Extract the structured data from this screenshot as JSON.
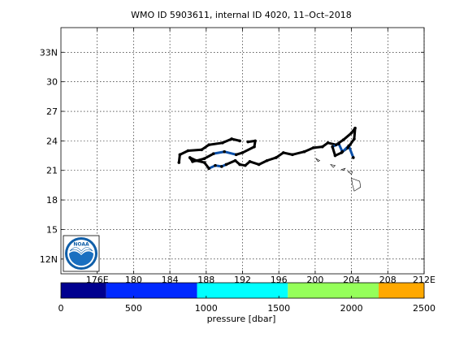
{
  "chart_data": [
    {
      "type": "line",
      "title": "WMO ID 5903611, internal ID 4020, 11–Oct–2018",
      "xlabel": "",
      "ylabel": "",
      "xlim": [
        172,
        212
      ],
      "ylim": [
        10.5,
        35.5
      ],
      "grid": true,
      "x_ticks": [
        176,
        180,
        184,
        188,
        192,
        196,
        200,
        204,
        208,
        212
      ],
      "x_tick_labels": [
        "176E",
        "180",
        "184",
        "188",
        "192",
        "196",
        "200",
        "204",
        "208",
        "212E"
      ],
      "y_ticks": [
        12,
        15,
        18,
        21,
        24,
        27,
        30,
        33
      ],
      "y_tick_labels": [
        "12N",
        "15",
        "18",
        "21",
        "24",
        "27",
        "30",
        "33N"
      ],
      "series": [
        {
          "trajectory": [
            [
              185.0,
              21.8
            ],
            [
              185.1,
              22.6
            ],
            [
              186.0,
              23.0
            ],
            [
              187.5,
              23.1
            ],
            [
              188.3,
              23.6
            ],
            [
              189.8,
              23.8
            ],
            [
              190.8,
              24.2
            ],
            [
              191.7,
              24.0
            ],
            [
              192.6,
              23.9
            ],
            [
              193.4,
              24.0
            ],
            [
              193.3,
              23.4
            ],
            [
              192.0,
              22.8
            ],
            [
              191.3,
              22.6
            ],
            [
              190.0,
              22.9
            ],
            [
              188.8,
              22.7
            ],
            [
              187.8,
              22.2
            ],
            [
              187.0,
              22.0
            ],
            [
              186.5,
              21.9
            ],
            [
              186.2,
              22.3
            ],
            [
              186.9,
              22.0
            ],
            [
              187.8,
              21.8
            ],
            [
              188.3,
              21.2
            ],
            [
              189.0,
              21.5
            ],
            [
              189.7,
              21.4
            ],
            [
              190.2,
              21.6
            ],
            [
              191.2,
              22.0
            ],
            [
              191.7,
              21.6
            ],
            [
              192.3,
              21.5
            ],
            [
              192.8,
              21.9
            ],
            [
              193.8,
              21.6
            ],
            [
              194.7,
              22.0
            ],
            [
              195.7,
              22.3
            ],
            [
              196.5,
              22.8
            ],
            [
              197.5,
              22.6
            ],
            [
              198.8,
              22.9
            ],
            [
              199.8,
              23.3
            ],
            [
              200.8,
              23.4
            ],
            [
              201.4,
              23.8
            ],
            [
              202.3,
              23.6
            ],
            [
              203.1,
              24.1
            ],
            [
              204.0,
              24.8
            ],
            [
              204.4,
              25.3
            ],
            [
              204.3,
              24.2
            ],
            [
              203.6,
              23.3
            ],
            [
              203.0,
              22.9
            ],
            [
              202.6,
              23.7
            ],
            [
              201.9,
              23.4
            ],
            [
              202.2,
              22.5
            ],
            [
              202.9,
              22.8
            ],
            [
              203.7,
              23.5
            ],
            [
              204.2,
              22.3
            ]
          ],
          "segment_pressure_dbar": [
            2000,
            2000,
            2000,
            2000,
            2000,
            2000,
            2000,
            0,
            2000,
            2000,
            2000,
            2000,
            1300,
            1300,
            2000,
            2000,
            2000,
            2000,
            2000,
            2000,
            2000,
            1300,
            1300,
            1300,
            2000,
            2000,
            2000,
            2000,
            2000,
            2000,
            2000,
            2000,
            2000,
            2000,
            2000,
            2000,
            2000,
            2000,
            2000,
            2000,
            2000,
            2000,
            2000,
            2000,
            1300,
            1300,
            2000,
            2000,
            1300,
            1300
          ]
        }
      ],
      "land": {
        "name": "Hawaiian Islands",
        "islands": [
          [
            [
              200.1,
              22.2
            ],
            [
              200.5,
              22.0
            ],
            [
              200.3,
              21.9
            ]
          ],
          [
            [
              201.7,
              21.6
            ],
            [
              202.2,
              21.5
            ],
            [
              202.0,
              21.3
            ]
          ],
          [
            [
              202.9,
              21.1
            ],
            [
              203.3,
              21.2
            ],
            [
              203.1,
              21.0
            ]
          ],
          [
            [
              203.6,
              20.9
            ],
            [
              204.1,
              20.9
            ],
            [
              204.0,
              20.6
            ]
          ],
          [
            [
              204.0,
              20.2
            ],
            [
              204.9,
              19.9
            ],
            [
              205.0,
              19.3
            ],
            [
              204.3,
              18.9
            ],
            [
              204.1,
              19.6
            ]
          ]
        ]
      }
    },
    {
      "type": "heatmap",
      "orientation": "horizontal",
      "xlabel": "pressure [dbar]",
      "range": [
        0,
        2500
      ],
      "ticks": [
        0,
        500,
        1000,
        1500,
        2000,
        2500
      ],
      "tick_labels": [
        "0",
        "500",
        "1000",
        "1500",
        "2000",
        "2500"
      ],
      "bins": [
        {
          "from": 0,
          "to": 312,
          "color": "#00008f"
        },
        {
          "from": 312,
          "to": 937,
          "color": "#0029ff"
        },
        {
          "from": 937,
          "to": 1562,
          "color": "#00ffff"
        },
        {
          "from": 1562,
          "to": 2187,
          "color": "#95ff5a"
        },
        {
          "from": 2187,
          "to": 2500,
          "color": "#ffa800"
        }
      ]
    }
  ],
  "track_colors": {
    "deep": "#000000",
    "shallow": "#0a4fa8"
  },
  "logo": {
    "text": "NOAA",
    "colors": {
      "ring": "#0f5ea8",
      "inner": "#1a6fc0",
      "gull": "#ffffff"
    }
  }
}
